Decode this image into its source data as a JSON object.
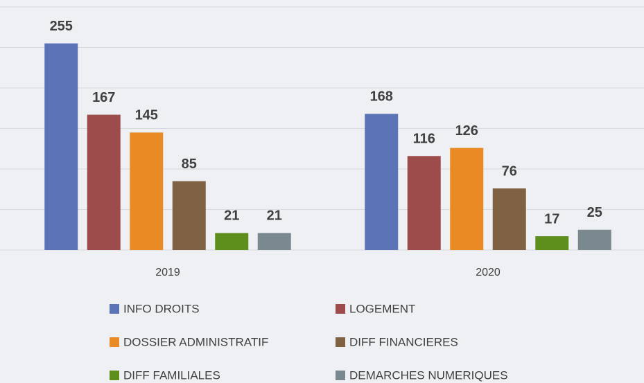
{
  "chart_data": {
    "type": "bar",
    "categories": [
      "2019",
      "2020"
    ],
    "series": [
      {
        "name": "INFO DROITS",
        "color": "#5b74b8",
        "values": [
          255,
          168
        ]
      },
      {
        "name": "LOGEMENT",
        "color": "#9e4b4b",
        "values": [
          167,
          116
        ]
      },
      {
        "name": "DOSSIER ADMINISTRATIF",
        "color": "#e98a24",
        "values": [
          145,
          126
        ]
      },
      {
        "name": "DIFF FINANCIERES",
        "color": "#7f6244",
        "values": [
          85,
          76
        ]
      },
      {
        "name": "DIFF FAMILIALES",
        "color": "#5e8f1d",
        "values": [
          21,
          17
        ]
      },
      {
        "name": "DEMARCHES NUMERIQUES",
        "color": "#7a8890",
        "values": [
          21,
          25
        ]
      }
    ],
    "ylim": [
      0,
      300
    ],
    "yticks": [
      0,
      50,
      100,
      150,
      200,
      250,
      300
    ],
    "grid": true
  }
}
